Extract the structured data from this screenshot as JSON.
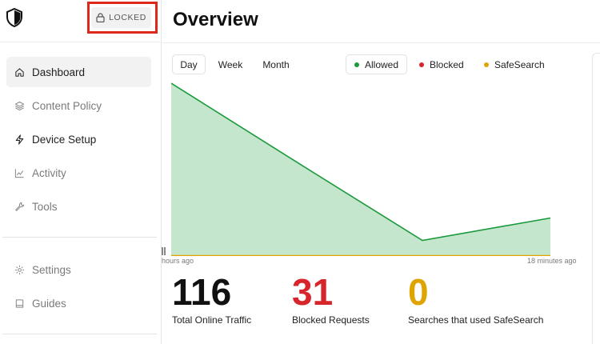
{
  "sidebar": {
    "lock_label": "LOCKED",
    "items": [
      {
        "label": "Dashboard",
        "icon": "home-icon"
      },
      {
        "label": "Content Policy",
        "icon": "layers-icon"
      },
      {
        "label": "Device Setup",
        "icon": "bolt-icon"
      },
      {
        "label": "Activity",
        "icon": "line-chart-icon"
      },
      {
        "label": "Tools",
        "icon": "wrench-icon"
      },
      {
        "label": "Settings",
        "icon": "gear-icon"
      },
      {
        "label": "Guides",
        "icon": "book-icon"
      }
    ]
  },
  "header": {
    "title": "Overview"
  },
  "range_tabs": [
    "Day",
    "Week",
    "Month"
  ],
  "legend": [
    {
      "label": "Allowed",
      "color": "#1a9a3c"
    },
    {
      "label": "Blocked",
      "color": "#d6252b"
    },
    {
      "label": "SafeSearch",
      "color": "#e0a400"
    }
  ],
  "axis": {
    "start_label": "hours ago",
    "end_label": "18 minutes ago"
  },
  "chart_data": {
    "type": "area",
    "x": [
      "hours ago",
      "",
      "",
      "18 minutes ago"
    ],
    "series": [
      {
        "name": "Allowed",
        "values": [
          100,
          52,
          9,
          22
        ]
      },
      {
        "name": "Blocked",
        "values": [
          0,
          0,
          0,
          0
        ]
      },
      {
        "name": "SafeSearch",
        "values": [
          0,
          0,
          0,
          0
        ]
      }
    ],
    "ylim": [
      0,
      100
    ],
    "grid": false,
    "legend": "top"
  },
  "stats": [
    {
      "value": "116",
      "label": "Total Online Traffic",
      "color": "#111111"
    },
    {
      "value": "31",
      "label": "Blocked Requests",
      "color": "#d6252b"
    },
    {
      "value": "0",
      "label": "Searches that used SafeSearch",
      "color": "#e0a400"
    }
  ]
}
